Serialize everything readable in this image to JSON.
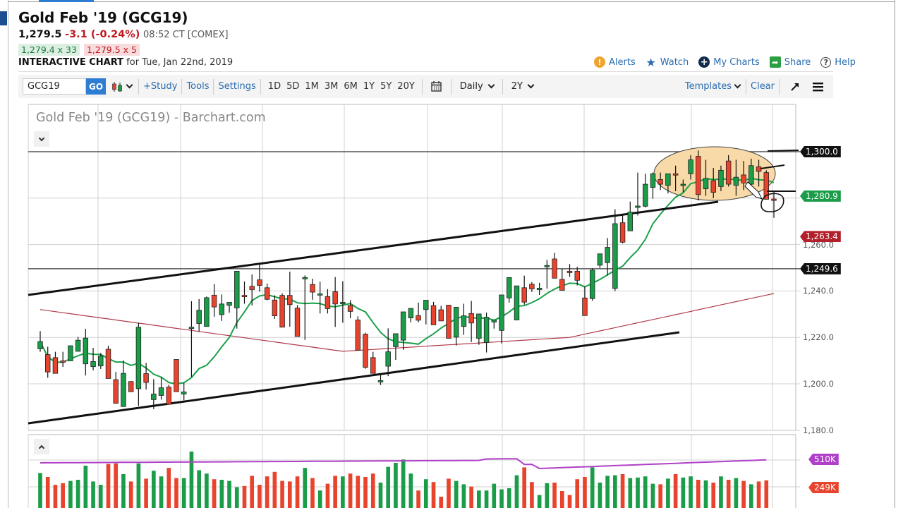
{
  "header": {
    "title": "Gold Feb '19 (GCG19)",
    "last": "1,279.5",
    "change": "-3.1 (-0.24%)",
    "time": "08:52 CT [COMEX]",
    "bid": "1,279.4 x 33",
    "ask": "1,279.5 x 5",
    "chart_label": "INTERACTIVE CHART",
    "chart_date": "for Tue, Jan 22nd, 2019"
  },
  "actions": [
    {
      "label": "Alerts",
      "icon": "alert-icon",
      "glyph": "!"
    },
    {
      "label": "Watch",
      "icon": "star-icon",
      "glyph": "★"
    },
    {
      "label": "My Charts",
      "icon": "plus-circle-icon",
      "glyph": "+"
    },
    {
      "label": "Share",
      "icon": "share-icon",
      "glyph": "➦"
    },
    {
      "label": "Help",
      "icon": "help-icon",
      "glyph": "?"
    }
  ],
  "toolbar": {
    "symbol_value": "GCG19",
    "go_label": "GO",
    "links": [
      "+Study",
      "Tools",
      "Settings"
    ],
    "periods": [
      "1D",
      "5D",
      "1M",
      "3M",
      "6M",
      "1Y",
      "5Y",
      "20Y"
    ],
    "interval": "Daily",
    "range": "2Y",
    "templates_label": "Templates",
    "clear_label": "Clear"
  },
  "chart": {
    "title": "Gold Feb '19 (GCG19) - Barchart.com"
  },
  "colors": {
    "up": "#1a9c48",
    "down": "#e8432c",
    "ma_fast": "#1aa04a",
    "ma_slow": "#b03a48",
    "volume_ma": "#b040c8",
    "accent": "#2d7dd2",
    "ellipse_fill": "#f8d9a8"
  },
  "chart_data": {
    "type": "candlestick",
    "title": "Gold Feb '19 (GCG19) - Barchart.com",
    "interval": "Daily",
    "y_axis": {
      "ticks": [
        1180,
        1200,
        1220,
        1240,
        1260,
        1280,
        1300
      ],
      "labels": [
        "1,180.0",
        "1,200.0",
        "1,220.0",
        "1,240.0",
        "1,260.0",
        "1,280.0",
        "1,300.0"
      ],
      "range": [
        1172,
        1320
      ]
    },
    "price_tags": [
      {
        "label": "1,300.0",
        "value": 1300.0,
        "color": "#111111"
      },
      {
        "label": "1,280.9",
        "value": 1280.9,
        "color": "#1a9c48"
      },
      {
        "label": "1,263.4",
        "value": 1263.4,
        "color": "#b3202c"
      },
      {
        "label": "1,249.6",
        "value": 1249.6,
        "color": "#111111"
      }
    ],
    "horizontal_lines": [
      1300.0,
      1249.6
    ],
    "volume_tags": [
      {
        "label": "510K",
        "color": "#b040c8"
      },
      {
        "label": "249K",
        "color": "#e8432c"
      }
    ],
    "candles": [
      [
        1215.1,
        1222.7,
        1213.8,
        1218.2
      ],
      [
        1212.6,
        1216.0,
        1202.6,
        1205.1
      ],
      [
        1211.3,
        1213.8,
        1204.5,
        1204.5
      ],
      [
        1209.9,
        1213.8,
        1207.3,
        1209.6
      ],
      [
        1209.9,
        1216.4,
        1211.8,
        1216.4
      ],
      [
        1214.0,
        1220.2,
        1214.0,
        1218.8
      ],
      [
        1208.6,
        1223.7,
        1203.6,
        1219.7
      ],
      [
        1207.4,
        1215.5,
        1205.8,
        1209.6
      ],
      [
        1207.7,
        1213.2,
        1206.4,
        1212.0
      ],
      [
        1214.9,
        1216.4,
        1206.4,
        1202.3
      ],
      [
        1201.8,
        1205.1,
        1191.6,
        1191.6
      ],
      [
        1190.2,
        1210.1,
        1190.2,
        1204.5
      ],
      [
        1201.0,
        1201.0,
        1196.6,
        1196.6
      ],
      [
        1197.9,
        1226.3,
        1190.5,
        1224.4
      ],
      [
        1204.4,
        1209.0,
        1197.5,
        1200.6
      ],
      [
        1193.2,
        1202.0,
        1189.1,
        1195.6
      ],
      [
        1195.0,
        1202.9,
        1193.2,
        1198.3
      ],
      [
        1198.6,
        1199.5,
        1192.6,
        1191.2
      ],
      [
        1210.5,
        1210.5,
        1196.6,
        1196.6
      ],
      [
        1195.6,
        1200.3,
        1192.9,
        1196.5
      ],
      [
        1224.4,
        1235.6,
        1203.0,
        1224.4
      ],
      [
        1226.0,
        1236.5,
        1222.4,
        1231.7
      ],
      [
        1224.7,
        1237.6,
        1225.3,
        1237.1
      ],
      [
        1238.2,
        1243.0,
        1228.9,
        1233.1
      ],
      [
        1229.8,
        1238.5,
        1227.1,
        1234.4
      ],
      [
        1233.8,
        1235.1,
        1230.6,
        1235.1
      ],
      [
        1232.7,
        1248.5,
        1223.8,
        1248.5
      ],
      [
        1238.1,
        1244.1,
        1234.5,
        1237.9
      ],
      [
        1242.0,
        1247.1,
        1233.7,
        1240.6
      ],
      [
        1244.8,
        1251.9,
        1239.7,
        1242.4
      ],
      [
        1241.4,
        1243.2,
        1236.0,
        1236.4
      ],
      [
        1236.1,
        1238.1,
        1228.0,
        1229.3
      ],
      [
        1238.1,
        1239.0,
        1227.1,
        1224.4
      ],
      [
        1238.1,
        1248.3,
        1224.6,
        1234.1
      ],
      [
        1232.6,
        1233.9,
        1220.4,
        1220.4
      ],
      [
        1245.8,
        1246.7,
        1218.9,
        1245.8
      ],
      [
        1242.8,
        1245.3,
        1236.2,
        1239.5
      ],
      [
        1238.8,
        1244.0,
        1230.3,
        1238.8
      ],
      [
        1237.6,
        1240.8,
        1230.3,
        1232.4
      ],
      [
        1239.7,
        1246.0,
        1224.5,
        1234.4
      ],
      [
        1235.1,
        1244.2,
        1226.3,
        1235.1
      ],
      [
        1233.8,
        1236.0,
        1228.3,
        1231.2
      ],
      [
        1227.5,
        1229.1,
        1220.9,
        1214.5
      ],
      [
        1221.4,
        1222.0,
        1206.5,
        1207.1
      ],
      [
        1211.3,
        1213.8,
        1204.5,
        1204.5
      ],
      [
        1201.4,
        1204.0,
        1199.5,
        1201.4
      ],
      [
        1207.6,
        1223.9,
        1203.3,
        1213.8
      ],
      [
        1216.0,
        1221.6,
        1210.3,
        1221.6
      ],
      [
        1218.8,
        1231.0,
        1214.6,
        1231.0
      ],
      [
        1228.4,
        1232.5,
        1226.5,
        1232.5
      ],
      [
        1229.4,
        1235.0,
        1226.5,
        1227.4
      ],
      [
        1232.0,
        1236.0,
        1225.6,
        1236.0
      ],
      [
        1233.7,
        1235.3,
        1225.4,
        1225.4
      ],
      [
        1231.9,
        1233.6,
        1227.1,
        1227.1
      ],
      [
        1233.9,
        1233.9,
        1219.6,
        1219.6
      ],
      [
        1220.1,
        1233.0,
        1216.5,
        1233.0
      ],
      [
        1224.7,
        1234.5,
        1221.1,
        1229.3
      ],
      [
        1230.3,
        1235.7,
        1218.0,
        1226.2
      ],
      [
        1219.6,
        1225.7,
        1216.8,
        1230.1
      ],
      [
        1217.8,
        1230.7,
        1213.5,
        1228.7
      ],
      [
        1226.6,
        1227.4,
        1223.8,
        1227.4
      ],
      [
        1223.0,
        1238.3,
        1217.4,
        1238.3
      ],
      [
        1237.0,
        1241.8,
        1235.0,
        1245.8
      ],
      [
        1227.5,
        1242.2,
        1230.8,
        1242.2
      ],
      [
        1241.4,
        1246.6,
        1234.1,
        1235.2
      ],
      [
        1242.9,
        1243.8,
        1239.6,
        1240.9
      ],
      [
        1241.0,
        1243.5,
        1238.3,
        1241.2
      ],
      [
        1251.0,
        1253.4,
        1241.0,
        1251.0
      ],
      [
        1253.8,
        1256.4,
        1248.5,
        1245.5
      ],
      [
        1245.0,
        1249.6,
        1243.0,
        1240.3
      ],
      [
        1248.5,
        1251.6,
        1246.1,
        1247.9
      ],
      [
        1248.5,
        1250.4,
        1242.4,
        1244.6
      ],
      [
        1237.0,
        1242.0,
        1233.6,
        1229.4
      ],
      [
        1236.7,
        1249.8,
        1235.8,
        1249.0
      ],
      [
        1251.1,
        1254.1,
        1249.9,
        1256.0
      ],
      [
        1252.2,
        1262.8,
        1246.7,
        1258.8
      ],
      [
        1241.1,
        1275.2,
        1240.0,
        1269.0
      ],
      [
        1269.4,
        1272.5,
        1260.5,
        1261.0
      ],
      [
        1265.9,
        1278.5,
        1266.0,
        1274.0
      ],
      [
        1276.6,
        1291.0,
        1272.5,
        1276.6
      ],
      [
        1276.5,
        1290.5,
        1276.0,
        1286.0
      ],
      [
        1284.6,
        1291.0,
        1279.7,
        1290.5
      ],
      [
        1288.0,
        1291.0,
        1283.5,
        1286.0
      ],
      [
        1285.5,
        1289.5,
        1282.0,
        1290.5
      ],
      [
        1290.5,
        1294.0,
        1283.0,
        1290.0
      ],
      [
        1286.0,
        1288.0,
        1282.5,
        1286.0
      ],
      [
        1290.5,
        1298.5,
        1288.0,
        1296.5
      ],
      [
        1298.0,
        1300.5,
        1279.0,
        1281.5
      ],
      [
        1284.0,
        1296.5,
        1281.0,
        1288.5
      ],
      [
        1287.5,
        1293.0,
        1280.0,
        1282.5
      ],
      [
        1285.0,
        1294.0,
        1283.0,
        1292.0
      ],
      [
        1296.0,
        1298.5,
        1285.0,
        1286.0
      ],
      [
        1285.5,
        1296.5,
        1281.0,
        1289.0
      ],
      [
        1290.0,
        1296.0,
        1283.5,
        1286.5
      ],
      [
        1286.0,
        1297.0,
        1284.5,
        1294.0
      ],
      [
        1293.5,
        1296.5,
        1285.0,
        1291.5
      ],
      [
        1291.0,
        1292.0,
        1279.5,
        1279.5
      ],
      [
        1279.6,
        1283.0,
        1271.5,
        1279.5
      ]
    ],
    "volume_relative": [
      0.62,
      0.55,
      0.41,
      0.44,
      0.48,
      0.5,
      0.75,
      0.47,
      0.41,
      0.78,
      0.79,
      0.6,
      0.47,
      0.79,
      0.52,
      0.66,
      0.56,
      0.71,
      0.53,
      0.53,
      1.0,
      0.67,
      0.61,
      0.51,
      0.5,
      0.48,
      0.37,
      0.39,
      0.57,
      0.41,
      0.56,
      0.64,
      0.48,
      0.47,
      0.56,
      0.71,
      0.53,
      0.31,
      0.43,
      0.57,
      0.56,
      0.61,
      0.57,
      0.55,
      0.61,
      0.45,
      0.73,
      0.8,
      0.86,
      0.61,
      0.31,
      0.51,
      0.46,
      0.2,
      0.52,
      0.48,
      0.42,
      0.38,
      0.31,
      0.31,
      0.43,
      0.33,
      0.35,
      0.58,
      0.72,
      0.46,
      0.23,
      0.44,
      0.45,
      0.3,
      0.23,
      0.51,
      0.55,
      0.72,
      0.45,
      0.57,
      0.58,
      0.6,
      0.53,
      0.54,
      0.56,
      0.43,
      0.42,
      0.52,
      0.6,
      0.54,
      0.56,
      0.5,
      0.49,
      0.45,
      0.56,
      0.5,
      0.53,
      0.48,
      0.42,
      0.47,
      0.49
    ],
    "annotations": [
      "ascending channel (two parallel trendlines)",
      "ellipse highlighting consolidation near 1,300",
      "circle around latest candle at ~1,280"
    ]
  }
}
